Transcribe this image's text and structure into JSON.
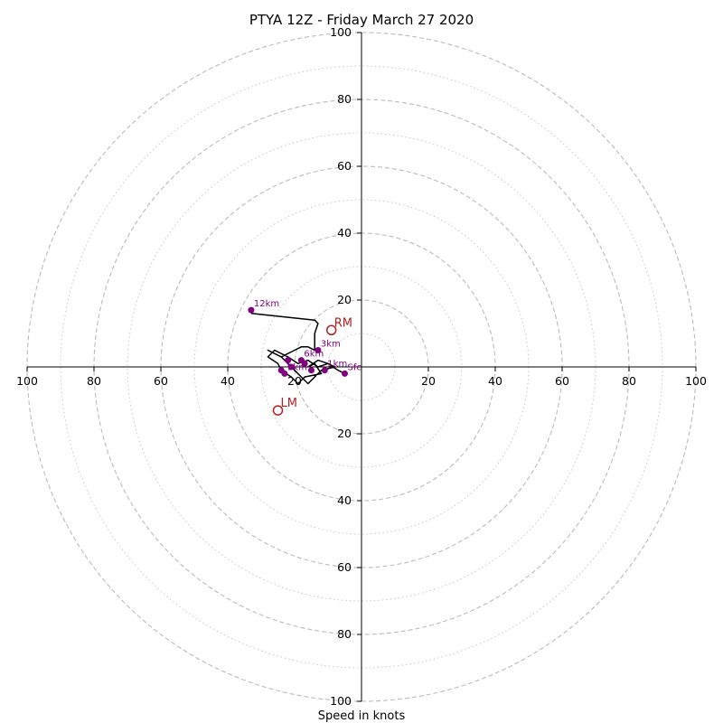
{
  "chart_data": {
    "type": "scatter",
    "subtype": "hodograph",
    "title": "PTYA 12Z - Friday March 27 2020",
    "xlabel": "Speed in knots",
    "ring_labels": [
      "20",
      "40",
      "60",
      "80",
      "100"
    ],
    "ring_values": [
      20,
      40,
      60,
      80,
      100
    ],
    "minor_rings": [
      10,
      30,
      50,
      70,
      90
    ],
    "grid": true,
    "axis_range": [
      -100,
      100
    ],
    "colors": {
      "trace": "#000000",
      "height_points": "#800080",
      "motion": "#b22222",
      "grid": "#bbbbbb"
    },
    "trace": {
      "u": [
        -5,
        -7,
        -10,
        -13,
        -16,
        -14,
        -12,
        -17,
        -19,
        -21,
        -24,
        -25,
        -28,
        -26,
        -22,
        -19,
        -16,
        -13,
        -10,
        -8,
        -12,
        -14,
        -16,
        -18,
        -20,
        -22,
        -24,
        -26,
        -28,
        -24,
        -20,
        -18,
        -16,
        -14,
        -14,
        -14,
        -13,
        -14,
        -33
      ],
      "v": [
        -2,
        -1,
        1,
        2,
        0,
        1,
        -2,
        -3,
        -5,
        -3,
        -1,
        1,
        3,
        5,
        3,
        1,
        2,
        0,
        1,
        0,
        -1,
        -3,
        -5,
        -3,
        -1,
        1,
        3,
        4,
        5,
        3,
        5,
        6,
        6,
        5,
        7,
        10,
        13,
        14,
        16
      ]
    },
    "height_points": [
      {
        "label": "Sfc",
        "u": -5,
        "v": -2
      },
      {
        "label": "1km",
        "u": -11,
        "v": -1
      },
      {
        "label": "3km",
        "u": -13,
        "v": 5
      },
      {
        "label": "6km",
        "u": -18,
        "v": 2
      },
      {
        "label": "9km",
        "u": -23,
        "v": -2
      },
      {
        "label": "12km",
        "u": -33,
        "v": 17
      },
      {
        "label": "",
        "u": -21,
        "v": 0
      },
      {
        "label": "",
        "u": -17,
        "v": 1
      },
      {
        "label": "",
        "u": -15,
        "v": -1
      },
      {
        "label": "",
        "u": -24,
        "v": -1
      },
      {
        "label": "",
        "u": -22,
        "v": 2
      }
    ],
    "storm_motion": [
      {
        "label": "RM",
        "u": -9,
        "v": 11
      },
      {
        "label": "LM",
        "u": -25,
        "v": -13
      }
    ]
  }
}
